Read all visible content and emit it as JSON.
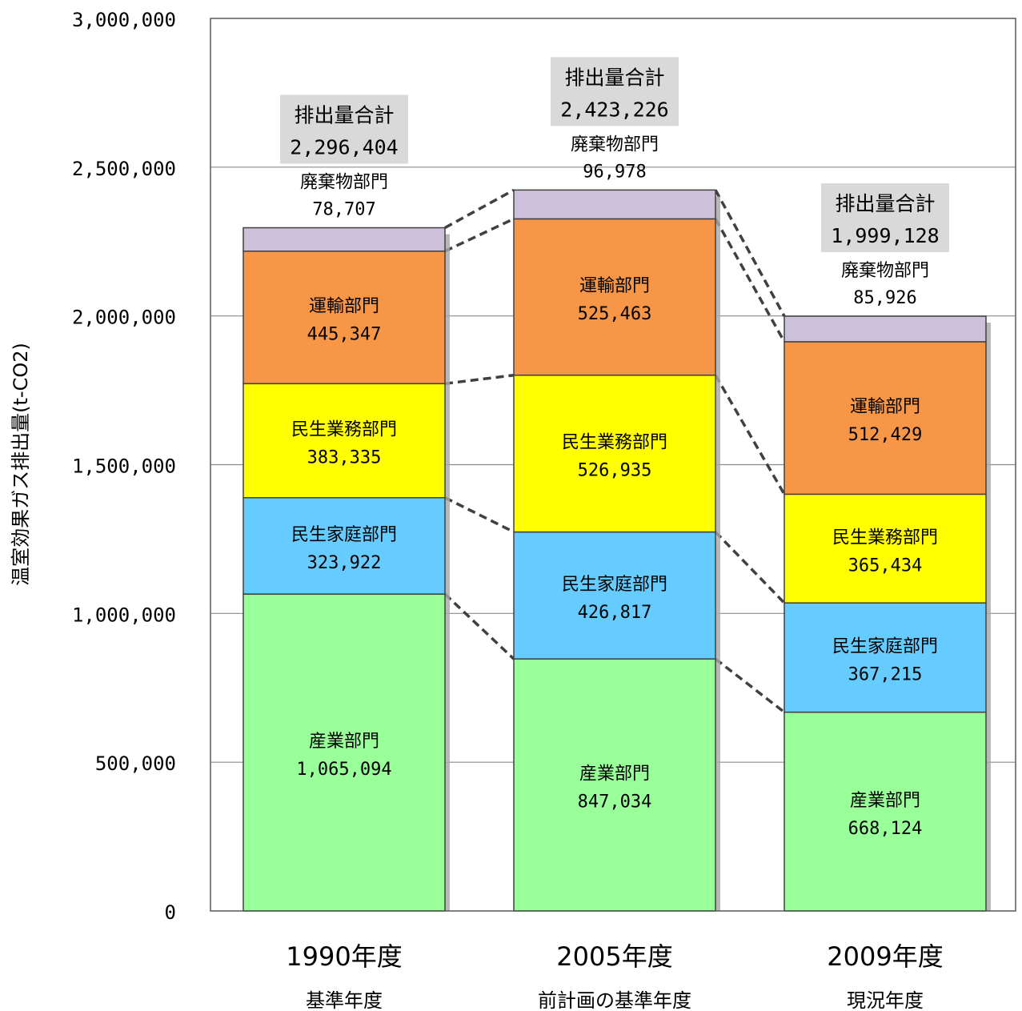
{
  "chart_data": {
    "type": "bar",
    "stacked": true,
    "ylabel": "温室効果ガス排出量(t-CO2)",
    "ylim": [
      0,
      3000000
    ],
    "yticks": [
      0,
      500000,
      1000000,
      1500000,
      2000000,
      2500000,
      3000000
    ],
    "ytick_labels": [
      "0",
      "500,000",
      "1,000,000",
      "1,500,000",
      "2,000,000",
      "2,500,000",
      "3,000,000"
    ],
    "grid": true,
    "categories": [
      "1990年度",
      "2005年度",
      "2009年度"
    ],
    "category_sublabels": [
      "基準年度",
      "前計画の基準年度",
      "現況年度"
    ],
    "total_label": "排出量合計",
    "totals": [
      2296404,
      2423226,
      1999128
    ],
    "total_value_labels": [
      "2,296,404",
      "2,423,226",
      "1,999,128"
    ],
    "series": [
      {
        "name": "産業部門",
        "color": "#99ff99",
        "values": [
          1065094,
          847034,
          668124
        ],
        "value_labels": [
          "1,065,094",
          "847,034",
          "668,124"
        ]
      },
      {
        "name": "民生家庭部門",
        "color": "#66ccff",
        "values": [
          323922,
          426817,
          367215
        ],
        "value_labels": [
          "323,922",
          "426,817",
          "367,215"
        ]
      },
      {
        "name": "民生業務部門",
        "color": "#ffff00",
        "values": [
          383335,
          526935,
          365434
        ],
        "value_labels": [
          "383,335",
          "526,935",
          "365,434"
        ]
      },
      {
        "name": "運輸部門",
        "color": "#f79646",
        "values": [
          445347,
          525463,
          512429
        ],
        "value_labels": [
          "445,347",
          "525,463",
          "512,429"
        ]
      },
      {
        "name": "廃棄物部門",
        "color": "#ccc0da",
        "values": [
          78707,
          96978,
          85926
        ],
        "value_labels": [
          "78,707",
          "96,978",
          "85,926"
        ]
      }
    ]
  }
}
